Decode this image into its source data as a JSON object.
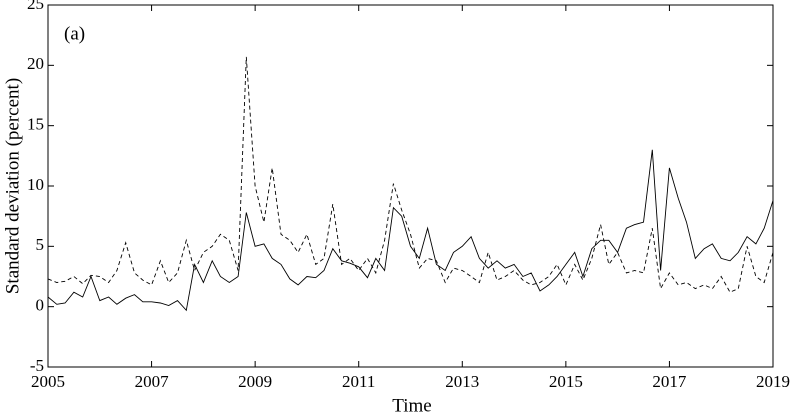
{
  "chart_data": {
    "type": "line",
    "annotation": "(a)",
    "x_label": "Time",
    "y_label": "Standard deviation (percent)",
    "x": [
      2005,
      2005.17,
      2005.33,
      2005.5,
      2005.67,
      2005.83,
      2006,
      2006.17,
      2006.33,
      2006.5,
      2006.67,
      2006.83,
      2007,
      2007.17,
      2007.33,
      2007.5,
      2007.67,
      2007.83,
      2008,
      2008.17,
      2008.33,
      2008.5,
      2008.67,
      2008.83,
      2009,
      2009.17,
      2009.33,
      2009.5,
      2009.67,
      2009.83,
      2010,
      2010.17,
      2010.33,
      2010.5,
      2010.67,
      2010.83,
      2011,
      2011.17,
      2011.33,
      2011.5,
      2011.67,
      2011.83,
      2012,
      2012.17,
      2012.33,
      2012.5,
      2012.67,
      2012.83,
      2013,
      2013.17,
      2013.33,
      2013.5,
      2013.67,
      2013.83,
      2014,
      2014.17,
      2014.33,
      2014.5,
      2014.67,
      2014.83,
      2015,
      2015.17,
      2015.33,
      2015.5,
      2015.67,
      2015.83,
      2016,
      2016.17,
      2016.33,
      2016.5,
      2016.67,
      2016.83,
      2017,
      2017.17,
      2017.33,
      2017.5,
      2017.67,
      2017.83,
      2018,
      2018.17,
      2018.33,
      2018.5,
      2018.67,
      2018.83,
      2019
    ],
    "series": [
      {
        "color": "#000000",
        "dash": "solid",
        "values": [
          0.8,
          0.2,
          0.3,
          1.2,
          0.8,
          2.5,
          0.5,
          0.8,
          0.2,
          0.7,
          1.0,
          0.4,
          0.4,
          0.3,
          0.1,
          0.5,
          -0.3,
          3.5,
          2.0,
          3.8,
          2.5,
          2.0,
          2.5,
          7.8,
          5.0,
          5.2,
          4.0,
          3.5,
          2.3,
          1.8,
          2.5,
          2.4,
          3.0,
          4.8,
          3.8,
          3.6,
          3.3,
          2.4,
          4.0,
          3.0,
          8.2,
          7.5,
          5.0,
          4.0,
          6.5,
          3.5,
          3.0,
          4.5,
          5.0,
          5.8,
          4.0,
          3.2,
          3.8,
          3.2,
          3.5,
          2.5,
          2.8,
          1.3,
          1.8,
          2.5,
          3.5,
          4.5,
          2.5,
          4.8,
          5.5,
          5.5,
          4.5,
          6.5,
          6.8,
          7.0,
          13.0,
          3.0,
          11.5,
          9.0,
          7.0,
          4.0,
          4.8,
          5.2,
          4.0,
          3.8,
          4.5,
          5.8,
          5.2,
          6.5,
          8.8
        ]
      },
      {
        "color": "#000000",
        "dash": "dashed",
        "values": [
          2.3,
          2.0,
          2.1,
          2.5,
          1.9,
          2.6,
          2.5,
          2.0,
          3.0,
          5.3,
          2.8,
          2.2,
          1.8,
          3.8,
          2.0,
          2.8,
          5.5,
          3.0,
          4.5,
          5.0,
          6.0,
          5.5,
          3.0,
          20.7,
          10.0,
          7.0,
          11.5,
          6.0,
          5.5,
          4.5,
          6.0,
          3.5,
          4.0,
          8.5,
          3.5,
          4.0,
          3.0,
          4.0,
          2.8,
          5.5,
          10.2,
          8.0,
          6.0,
          3.2,
          4.0,
          3.8,
          2.0,
          3.2,
          3.0,
          2.5,
          2.0,
          4.5,
          2.2,
          2.5,
          3.0,
          2.2,
          1.8,
          2.0,
          2.5,
          3.5,
          1.8,
          3.5,
          2.2,
          4.0,
          6.8,
          3.5,
          4.5,
          2.8,
          3.0,
          2.8,
          6.5,
          1.5,
          2.8,
          1.8,
          2.0,
          1.5,
          1.8,
          1.5,
          2.5,
          1.2,
          1.5,
          5.0,
          2.5,
          2.0,
          4.5
        ]
      }
    ],
    "xlim": [
      2005,
      2019
    ],
    "xticks": [
      2005,
      2007,
      2009,
      2011,
      2013,
      2015,
      2017,
      2019
    ],
    "ylim": [
      -5,
      25
    ],
    "yticks": [
      -5,
      0,
      5,
      10,
      15,
      20,
      25
    ],
    "grid": false
  }
}
